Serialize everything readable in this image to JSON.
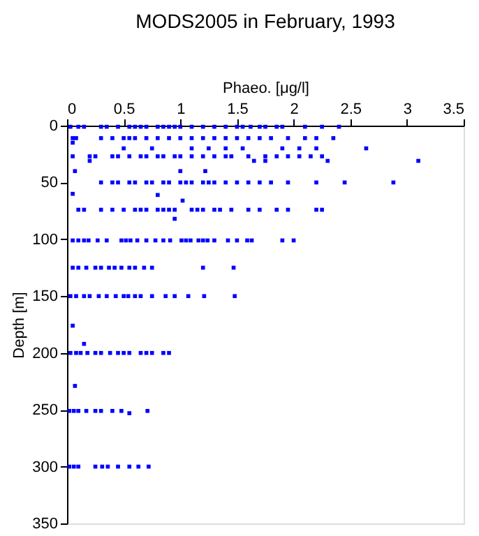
{
  "chart_data": {
    "type": "scatter",
    "title": "MODS2005 in February, 1993",
    "xlabel": "Phaeo. [μg/l]",
    "ylabel": "Depth [m]",
    "xlim": [
      0,
      3.5
    ],
    "xticks": [
      0,
      0.5,
      1,
      1.5,
      2,
      2.5,
      3,
      3.5
    ],
    "ylim": [
      350,
      0
    ],
    "yticks": [
      0,
      50,
      100,
      150,
      200,
      250,
      300,
      350
    ],
    "grid": false,
    "marker": "square",
    "series": [
      {
        "color": "#0000ff",
        "x": [
          0.03,
          0.1,
          0.15,
          0.3,
          0.35,
          0.45,
          0.55,
          0.6,
          0.65,
          0.7,
          0.8,
          0.85,
          0.9,
          0.95,
          1.0,
          1.1,
          1.2,
          1.3,
          1.4,
          1.5,
          1.55,
          1.62,
          1.7,
          1.75,
          1.85,
          1.9,
          2.1,
          2.25,
          2.4,
          0.05,
          0.08,
          0.3,
          0.4,
          0.5,
          0.55,
          0.6,
          0.7,
          0.8,
          0.9,
          1.0,
          1.1,
          1.2,
          1.3,
          1.4,
          1.5,
          1.6,
          1.7,
          1.8,
          1.95,
          2.1,
          2.2,
          2.35,
          0.05,
          0.5,
          0.75,
          1.1,
          1.25,
          1.4,
          1.55,
          1.9,
          2.05,
          2.2,
          2.64,
          0.05,
          0.2,
          0.25,
          0.4,
          0.45,
          0.55,
          0.65,
          0.7,
          0.8,
          0.85,
          0.95,
          1.0,
          1.1,
          1.2,
          1.3,
          1.4,
          1.45,
          1.6,
          1.75,
          1.85,
          1.95,
          2.05,
          2.15,
          2.25,
          0.2,
          1.65,
          1.75,
          2.3,
          3.1,
          0.07,
          1.0,
          1.22,
          0.3,
          0.4,
          0.45,
          0.55,
          0.6,
          0.7,
          0.75,
          0.85,
          0.9,
          1.0,
          1.05,
          1.1,
          1.2,
          1.25,
          1.3,
          1.4,
          1.5,
          1.6,
          1.7,
          1.8,
          1.95,
          2.2,
          2.45,
          2.88,
          0.05,
          0.8,
          1.02,
          0.1,
          0.15,
          0.3,
          0.4,
          0.5,
          0.6,
          0.65,
          0.7,
          0.8,
          0.85,
          0.9,
          0.95,
          1.1,
          1.15,
          1.2,
          1.3,
          1.35,
          1.45,
          1.6,
          1.7,
          1.85,
          1.95,
          2.2,
          2.25,
          0.95,
          0.05,
          0.1,
          0.15,
          0.19,
          0.27,
          0.35,
          0.48,
          0.52,
          0.56,
          0.62,
          0.7,
          0.78,
          0.85,
          0.91,
          1.01,
          1.05,
          1.09,
          1.16,
          1.2,
          1.24,
          1.3,
          1.42,
          1.5,
          1.59,
          1.63,
          1.9,
          2.0,
          0.05,
          0.1,
          0.17,
          0.25,
          0.3,
          0.37,
          0.42,
          0.48,
          0.55,
          0.6,
          0.68,
          0.75,
          1.2,
          1.47,
          0.03,
          0.08,
          0.15,
          0.2,
          0.28,
          0.35,
          0.43,
          0.5,
          0.54,
          0.6,
          0.65,
          0.75,
          0.87,
          0.95,
          1.07,
          1.21,
          1.48,
          0.05,
          0.15,
          0.03,
          0.08,
          0.12,
          0.18,
          0.25,
          0.3,
          0.38,
          0.45,
          0.5,
          0.55,
          0.65,
          0.7,
          0.75,
          0.85,
          0.9,
          0.07,
          0.02,
          0.06,
          0.1,
          0.17,
          0.25,
          0.3,
          0.4,
          0.48,
          0.55,
          0.71,
          0.02,
          0.06,
          0.1,
          0.25,
          0.31,
          0.36,
          0.45,
          0.55,
          0.63,
          0.72
        ],
        "values": [
          1,
          1,
          1,
          1,
          1,
          1,
          1,
          1,
          1,
          1,
          1,
          1,
          1,
          1,
          1,
          1,
          1,
          1,
          1,
          1,
          1,
          1,
          1,
          1,
          1,
          1,
          1,
          1,
          1,
          11,
          11,
          11,
          11,
          11,
          11,
          11,
          11,
          11,
          11,
          11,
          11,
          11,
          11,
          11,
          11,
          11,
          11,
          11,
          11,
          11,
          11,
          11,
          15,
          20,
          20,
          20,
          20,
          20,
          20,
          20,
          20,
          20,
          20,
          27,
          27,
          27,
          27,
          27,
          27,
          27,
          27,
          27,
          27,
          27,
          27,
          27,
          27,
          27,
          27,
          27,
          27,
          27,
          27,
          27,
          27,
          27,
          27,
          31,
          31,
          31,
          31,
          31,
          40,
          40,
          40,
          50,
          50,
          50,
          50,
          50,
          50,
          50,
          50,
          50,
          50,
          50,
          50,
          50,
          50,
          50,
          50,
          50,
          50,
          50,
          50,
          50,
          50,
          50,
          50,
          60,
          61,
          66,
          74,
          74,
          74,
          74,
          74,
          74,
          74,
          74,
          74,
          74,
          74,
          74,
          74,
          74,
          74,
          74,
          74,
          74,
          74,
          74,
          74,
          74,
          74,
          74,
          82,
          101,
          101,
          101,
          101,
          101,
          101,
          101,
          101,
          101,
          101,
          101,
          101,
          101,
          101,
          101,
          101,
          101,
          101,
          101,
          101,
          101,
          101,
          101,
          101,
          101,
          101,
          101,
          125,
          125,
          125,
          125,
          125,
          125,
          125,
          125,
          125,
          125,
          125,
          125,
          125,
          125,
          150,
          150,
          150,
          150,
          150,
          150,
          150,
          150,
          150,
          150,
          150,
          150,
          150,
          150,
          150,
          150,
          150,
          176,
          192,
          200,
          200,
          200,
          200,
          200,
          200,
          200,
          200,
          200,
          200,
          200,
          200,
          200,
          200,
          200,
          229,
          251,
          251,
          251,
          251,
          251,
          251,
          251,
          251,
          253,
          251,
          300,
          300,
          300,
          300,
          300,
          300,
          300,
          300,
          300,
          300
        ]
      }
    ]
  }
}
